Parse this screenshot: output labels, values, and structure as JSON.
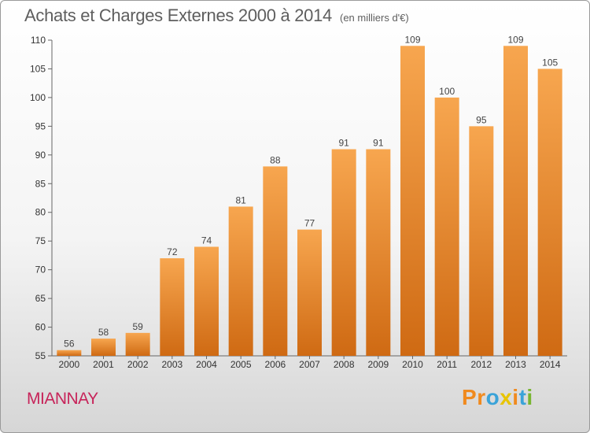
{
  "chart_data": {
    "type": "bar",
    "title": "Achats et Charges Externes 2000 à 2014",
    "subtitle": "(en milliers d'€)",
    "categories": [
      "2000",
      "2001",
      "2002",
      "2003",
      "2004",
      "2005",
      "2006",
      "2007",
      "2008",
      "2009",
      "2010",
      "2011",
      "2012",
      "2013",
      "2014"
    ],
    "values": [
      56,
      58,
      59,
      72,
      74,
      81,
      88,
      77,
      91,
      91,
      109,
      100,
      95,
      109,
      105
    ],
    "ylim": [
      55,
      110
    ],
    "yticks": [
      55,
      60,
      65,
      70,
      75,
      80,
      85,
      90,
      95,
      100,
      105,
      110
    ],
    "grid": "none",
    "legend": "none",
    "colors": {
      "bar_light": "#f7a64f",
      "bar_dark": "#cf6a13"
    }
  },
  "location": "MIANNAY",
  "brand": {
    "letters": [
      "P",
      "r",
      "o",
      "x",
      "i",
      "t",
      "i"
    ],
    "colors": [
      "#f08a1e",
      "#f08a1e",
      "#3aa3d8",
      "#e8c400",
      "#f08a1e",
      "#3aa3d8",
      "#78b530"
    ]
  }
}
